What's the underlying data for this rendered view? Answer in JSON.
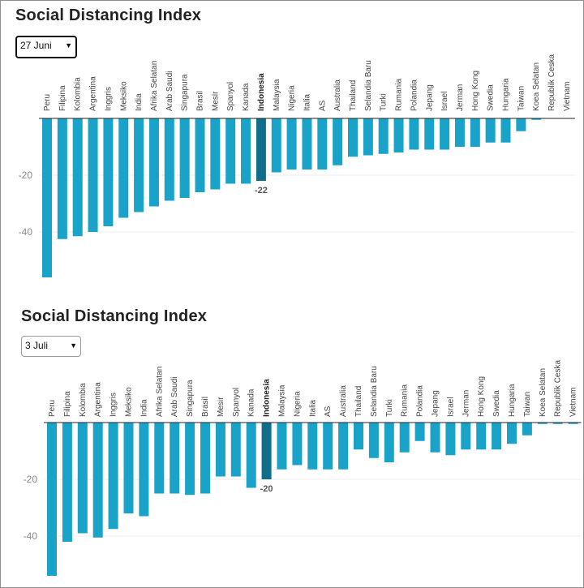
{
  "colors": {
    "bar": "#1aa3c9",
    "highlight": "#0f6e8a"
  },
  "panels": [
    {
      "title": "Social Distancing Index",
      "selected_date": "27 Juni",
      "chart_data": {
        "type": "bar",
        "title": "Social Distancing Index",
        "categories": [
          "Peru",
          "Filipina",
          "Kolombia",
          "Argentina",
          "Inggris",
          "Meksiko",
          "India",
          "Afrika Selatan",
          "Arab Saudi",
          "Singapura",
          "Brasil",
          "Mesir",
          "Spanyol",
          "Kanada",
          "Indonesia",
          "Malaysia",
          "Nigeria",
          "Italia",
          "AS",
          "Australia",
          "Thailand",
          "Selandia Baru",
          "Turki",
          "Rumania",
          "Polandia",
          "Jepang",
          "Israel",
          "Jerman",
          "Hong Kong",
          "Swedia",
          "Hungaria",
          "Taiwan",
          "Koea Selatan",
          "Republik Ceska",
          "Vietnam"
        ],
        "values": [
          -56,
          -42.5,
          -41.5,
          -40,
          -38,
          -35,
          -33,
          -31,
          -29,
          -28,
          -26,
          -25,
          -23,
          -23,
          -22,
          -19,
          -18,
          -18,
          -18,
          -16.5,
          -13.5,
          -13,
          -12.5,
          -12,
          -11,
          -11,
          -11,
          -10,
          -10,
          -8.5,
          -8.5,
          -4.5,
          -0.5,
          0,
          0
        ],
        "highlight": "Indonesia",
        "data_label": "-22",
        "yticks": [
          -20,
          -40
        ],
        "ylim": [
          -58,
          0
        ],
        "grid": true
      }
    },
    {
      "title": "Social Distancing Index",
      "selected_date": "3 Juli",
      "chart_data": {
        "type": "bar",
        "title": "Social Distancing Index",
        "categories": [
          "Peru",
          "Filipina",
          "Kolombia",
          "Argentina",
          "Inggris",
          "Meksiko",
          "India",
          "Afrika Selatan",
          "Arab Saudi",
          "Singapura",
          "Brasil",
          "Mesir",
          "Spanyol",
          "Kanada",
          "Indonesia",
          "Malaysia",
          "Nigeria",
          "Italia",
          "AS",
          "Australia",
          "Thailand",
          "Selandia Baru",
          "Turki",
          "Rumania",
          "Polandia",
          "Jepang",
          "Israel",
          "Jerman",
          "Hong Kong",
          "Swedia",
          "Hungaria",
          "Taiwan",
          "Koea Selatan",
          "Republik Ceska",
          "Vietnam"
        ],
        "values": [
          -54,
          -42,
          -39,
          -40.5,
          -37.5,
          -32,
          -33,
          -25,
          -25,
          -25.5,
          -25,
          -19,
          -19,
          -23,
          -20,
          -16.5,
          -15,
          -16.5,
          -16.5,
          -16.5,
          -9.5,
          -12.5,
          -14,
          -10.5,
          -6.5,
          -10.5,
          -11.5,
          -9.5,
          -9.5,
          -9.5,
          -7.5,
          -4.5,
          -0.5,
          -0.5,
          -0.5
        ],
        "highlight": "Indonesia",
        "data_label": "-20",
        "yticks": [
          -20,
          -40
        ],
        "ylim": [
          -56,
          0
        ],
        "grid": true
      }
    }
  ]
}
